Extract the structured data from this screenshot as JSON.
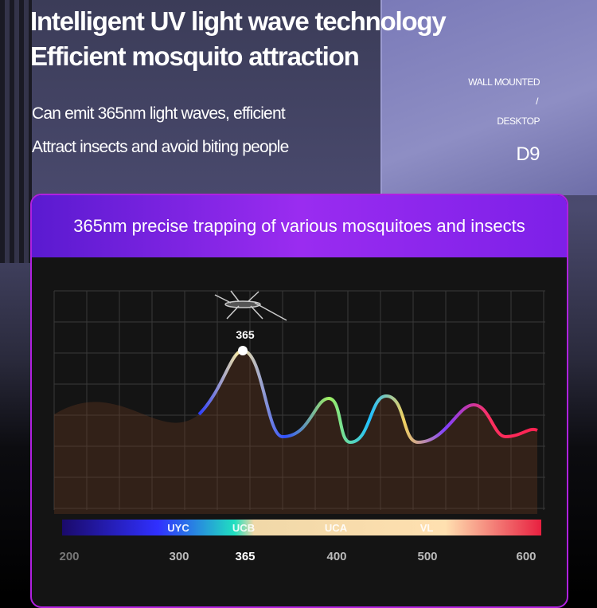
{
  "headline": [
    "Intelligent UV light wave technology",
    "Efficient mosquito attraction"
  ],
  "subtext": [
    "Can emit 365nm light waves, efficient",
    "Attract insects and avoid biting people"
  ],
  "device": {
    "mount_1": "WALL MOUNTED",
    "sep": "/",
    "mount_2": "DESKTOP",
    "model": "D9"
  },
  "card": {
    "title": "365nm precise trapping of various mosquitoes and insects"
  },
  "spectrum": {
    "peak_label": "365",
    "bands": [
      "UYC",
      "UCB",
      "UCA",
      "VL"
    ],
    "ticks": [
      "200",
      "300",
      "365",
      "400",
      "500",
      "600"
    ],
    "insect_icon": "mosquito-icon"
  }
}
